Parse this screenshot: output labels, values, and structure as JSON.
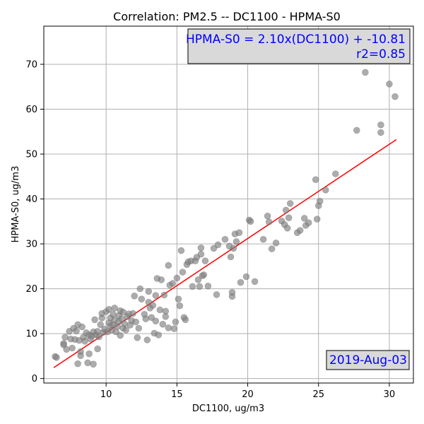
{
  "chart_data": {
    "type": "scatter",
    "title": "Correlation: PM2.5 -- DC1100 - HPMA-S0",
    "xlabel": "DC1100, ug/m3",
    "ylabel": "HPMA-S0, ug/m3",
    "xlim": [
      5.6,
      31.7
    ],
    "ylim": [
      -1.0,
      78.5
    ],
    "xticks": [
      10,
      15,
      20,
      25,
      30
    ],
    "yticks": [
      0,
      10,
      20,
      30,
      40,
      50,
      60,
      70
    ],
    "grid": true,
    "annotation_equation": "HPMA-S0 = 2.10x(DC1100) + -10.81",
    "annotation_r2": "r2=0.85",
    "annotation_date": "2019-Aug-03",
    "fit_line": {
      "slope": 2.1,
      "intercept": -10.81,
      "x_start": 6.3,
      "x_end": 30.5,
      "color": "#ff0000"
    },
    "point_color": "#808080",
    "points": [
      [
        6.4,
        4.9
      ],
      [
        6.5,
        4.7
      ],
      [
        7.0,
        7.8
      ],
      [
        7.0,
        7.5
      ],
      [
        7.1,
        9.2
      ],
      [
        7.2,
        6.5
      ],
      [
        7.4,
        10.5
      ],
      [
        7.5,
        8.8
      ],
      [
        7.6,
        6.8
      ],
      [
        7.7,
        11.2
      ],
      [
        7.8,
        8.7
      ],
      [
        7.9,
        10.6
      ],
      [
        8.0,
        3.3
      ],
      [
        8.0,
        12.0
      ],
      [
        8.1,
        8.5
      ],
      [
        8.2,
        6.0
      ],
      [
        8.2,
        5.1
      ],
      [
        8.3,
        11.5
      ],
      [
        8.4,
        9.2
      ],
      [
        8.5,
        8.3
      ],
      [
        8.6,
        10.2
      ],
      [
        8.7,
        3.5
      ],
      [
        8.8,
        5.5
      ],
      [
        8.8,
        9.7
      ],
      [
        8.9,
        8.8
      ],
      [
        9.0,
        9.5
      ],
      [
        9.1,
        3.2
      ],
      [
        9.1,
        10.4
      ],
      [
        9.2,
        13.1
      ],
      [
        9.3,
        9.7
      ],
      [
        9.4,
        6.6
      ],
      [
        9.4,
        10.5
      ],
      [
        9.5,
        9.3
      ],
      [
        9.6,
        12.0
      ],
      [
        9.7,
        13.5
      ],
      [
        9.7,
        14.5
      ],
      [
        9.8,
        10.3
      ],
      [
        9.9,
        11.0
      ],
      [
        10.0,
        14.9
      ],
      [
        10.1,
        10.4
      ],
      [
        10.2,
        15.4
      ],
      [
        10.2,
        12.4
      ],
      [
        10.3,
        13.5
      ],
      [
        10.3,
        11.7
      ],
      [
        10.4,
        10.8
      ],
      [
        10.5,
        14.3
      ],
      [
        10.5,
        12.0
      ],
      [
        10.6,
        15.7
      ],
      [
        10.6,
        13.0
      ],
      [
        10.7,
        10.4
      ],
      [
        10.8,
        11.6
      ],
      [
        10.9,
        14.0
      ],
      [
        10.9,
        12.7
      ],
      [
        11.0,
        9.6
      ],
      [
        11.0,
        15.1
      ],
      [
        11.1,
        13.3
      ],
      [
        11.2,
        11.2
      ],
      [
        11.2,
        14.8
      ],
      [
        11.3,
        12.2
      ],
      [
        11.4,
        10.8
      ],
      [
        11.5,
        13.8
      ],
      [
        11.6,
        14.4
      ],
      [
        11.7,
        11.9
      ],
      [
        11.8,
        12.9
      ],
      [
        11.9,
        14.5
      ],
      [
        12.0,
        18.4
      ],
      [
        12.1,
        12.6
      ],
      [
        12.2,
        9.1
      ],
      [
        12.3,
        11.2
      ],
      [
        12.4,
        20.0
      ],
      [
        12.5,
        17.7
      ],
      [
        12.7,
        14.3
      ],
      [
        12.8,
        13.3
      ],
      [
        12.9,
        8.6
      ],
      [
        13.0,
        17.0
      ],
      [
        13.0,
        19.4
      ],
      [
        13.1,
        15.7
      ],
      [
        13.2,
        13.6
      ],
      [
        13.3,
        16.3
      ],
      [
        13.4,
        10.1
      ],
      [
        13.5,
        18.5
      ],
      [
        13.5,
        12.8
      ],
      [
        13.6,
        22.3
      ],
      [
        13.7,
        9.7
      ],
      [
        13.8,
        15.3
      ],
      [
        13.9,
        22.0
      ],
      [
        14.0,
        12.1
      ],
      [
        14.1,
        18.6
      ],
      [
        14.2,
        15.0
      ],
      [
        14.2,
        13.8
      ],
      [
        14.4,
        25.2
      ],
      [
        14.4,
        11.3
      ],
      [
        14.5,
        20.8
      ],
      [
        14.7,
        21.2
      ],
      [
        14.8,
        11.1
      ],
      [
        14.9,
        12.6
      ],
      [
        15.0,
        22.4
      ],
      [
        15.1,
        17.7
      ],
      [
        15.2,
        16.2
      ],
      [
        15.3,
        28.5
      ],
      [
        15.4,
        23.7
      ],
      [
        15.5,
        13.6
      ],
      [
        15.6,
        13.1
      ],
      [
        15.7,
        25.4
      ],
      [
        15.8,
        26.0
      ],
      [
        16.0,
        26.2
      ],
      [
        16.1,
        20.5
      ],
      [
        16.3,
        26.2
      ],
      [
        16.4,
        27.0
      ],
      [
        16.5,
        22.0
      ],
      [
        16.6,
        20.5
      ],
      [
        16.7,
        29.1
      ],
      [
        16.7,
        27.7
      ],
      [
        16.8,
        22.9
      ],
      [
        16.9,
        23.1
      ],
      [
        17.0,
        26.2
      ],
      [
        17.2,
        20.6
      ],
      [
        17.6,
        29.0
      ],
      [
        17.8,
        18.7
      ],
      [
        17.9,
        29.8
      ],
      [
        18.4,
        31.0
      ],
      [
        18.7,
        29.5
      ],
      [
        18.8,
        27.1
      ],
      [
        18.9,
        18.3
      ],
      [
        18.9,
        19.2
      ],
      [
        19.0,
        29.0
      ],
      [
        19.1,
        32.2
      ],
      [
        19.2,
        30.5
      ],
      [
        19.4,
        32.5
      ],
      [
        19.5,
        21.4
      ],
      [
        19.9,
        22.7
      ],
      [
        20.1,
        35.3
      ],
      [
        20.2,
        35.0
      ],
      [
        20.5,
        21.6
      ],
      [
        21.1,
        31.0
      ],
      [
        21.4,
        36.2
      ],
      [
        21.5,
        34.9
      ],
      [
        21.7,
        28.9
      ],
      [
        22.0,
        30.2
      ],
      [
        22.4,
        35.1
      ],
      [
        22.6,
        34.3
      ],
      [
        22.7,
        37.5
      ],
      [
        22.8,
        33.5
      ],
      [
        22.9,
        35.8
      ],
      [
        23.0,
        39.0
      ],
      [
        23.5,
        32.5
      ],
      [
        23.7,
        33.0
      ],
      [
        24.0,
        35.7
      ],
      [
        24.1,
        34.1
      ],
      [
        24.3,
        34.7
      ],
      [
        24.8,
        44.3
      ],
      [
        24.9,
        35.5
      ],
      [
        25.0,
        38.5
      ],
      [
        25.1,
        39.5
      ],
      [
        25.5,
        42.0
      ],
      [
        26.2,
        45.6
      ],
      [
        27.7,
        55.3
      ],
      [
        28.3,
        68.2
      ],
      [
        29.4,
        56.5
      ],
      [
        29.4,
        54.8
      ],
      [
        30.0,
        65.6
      ],
      [
        30.4,
        62.8
      ]
    ]
  }
}
